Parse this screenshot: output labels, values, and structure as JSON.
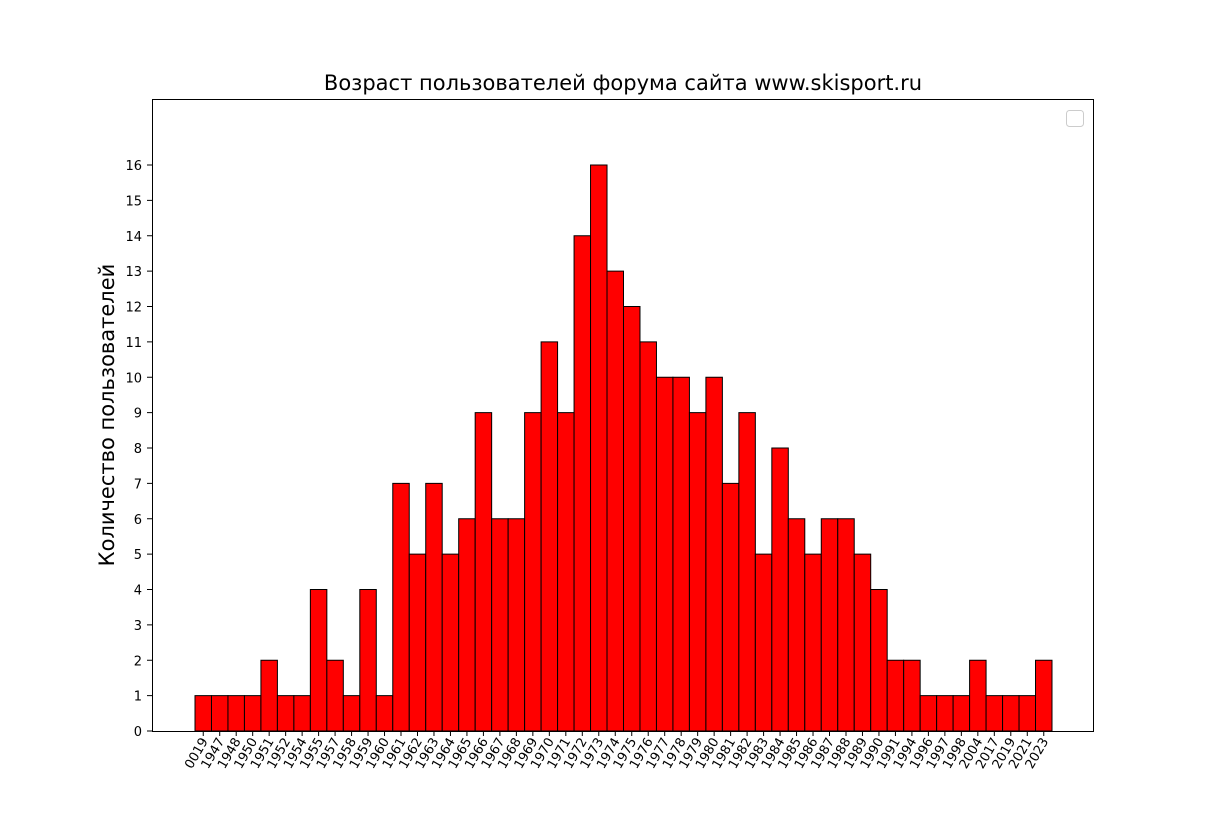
{
  "chart_data": {
    "type": "bar",
    "title": "Возраст пользователей форума сайта www.skisport.ru",
    "xlabel": "",
    "ylabel": "Количество пользователей",
    "categories": [
      "0019",
      "1947",
      "1948",
      "1950",
      "1951",
      "1952",
      "1954",
      "1955",
      "1957",
      "1958",
      "1959",
      "1960",
      "1961",
      "1962",
      "1963",
      "1964",
      "1965",
      "1966",
      "1967",
      "1968",
      "1969",
      "1970",
      "1971",
      "1972",
      "1973",
      "1974",
      "1975",
      "1976",
      "1977",
      "1978",
      "1979",
      "1980",
      "1981",
      "1982",
      "1983",
      "1984",
      "1985",
      "1986",
      "1987",
      "1988",
      "1989",
      "1990",
      "1991",
      "1994",
      "1996",
      "1997",
      "1998",
      "2004",
      "2017",
      "2019",
      "2021",
      "2023"
    ],
    "values": [
      1,
      1,
      1,
      1,
      2,
      1,
      1,
      4,
      2,
      1,
      4,
      1,
      7,
      5,
      7,
      5,
      6,
      9,
      6,
      6,
      9,
      11,
      9,
      14,
      16,
      13,
      12,
      11,
      10,
      10,
      9,
      10,
      7,
      9,
      5,
      8,
      6,
      5,
      6,
      6,
      5,
      4,
      2,
      2,
      1,
      1,
      1,
      2,
      1,
      1,
      1,
      2
    ],
    "yticks": [
      "0",
      "1",
      "2",
      "3",
      "4",
      "5",
      "6",
      "7",
      "8",
      "9",
      "10",
      "11",
      "12",
      "13",
      "14",
      "15",
      "16"
    ],
    "ylim": [
      0,
      17.1
    ],
    "bar_color": "#ff0000",
    "edge_color": "#000000",
    "legend": "top-right",
    "grid": false
  }
}
